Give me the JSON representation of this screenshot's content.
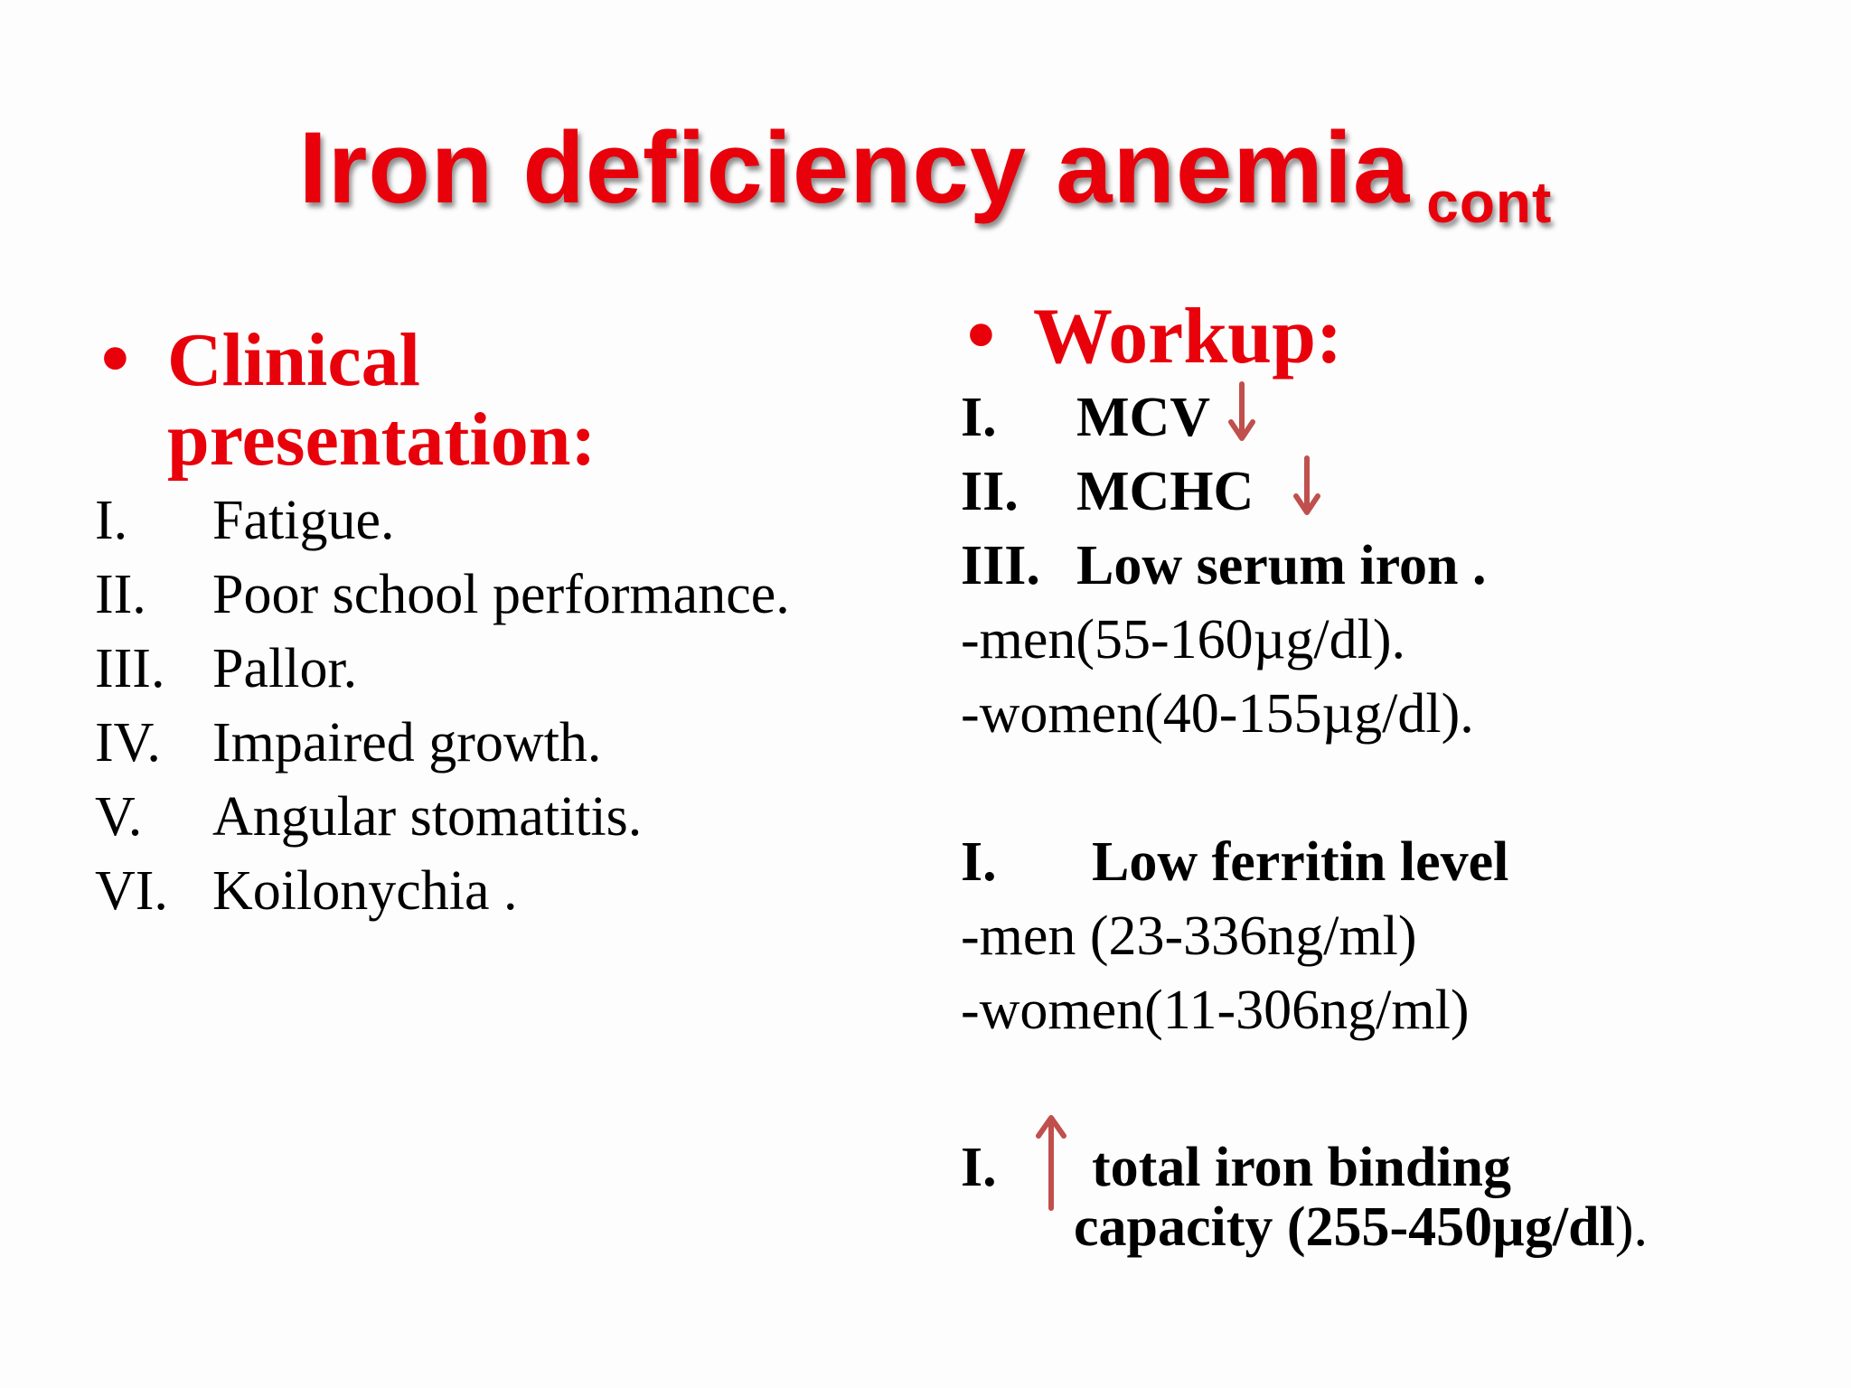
{
  "title": {
    "main": "Iron deficiency anemia",
    "sub": "cont"
  },
  "left": {
    "heading_line1": "Clinical",
    "heading_line2": "presentation:",
    "items": [
      {
        "num": "I.",
        "text": "Fatigue."
      },
      {
        "num": "II.",
        "text": "Poor school performance."
      },
      {
        "num": "III.",
        "text": "Pallor."
      },
      {
        "num": "IV.",
        "text": "Impaired growth."
      },
      {
        "num": "V.",
        "text": "Angular stomatitis."
      },
      {
        "num": "VI.",
        "text": "Koilonychia ."
      }
    ]
  },
  "right": {
    "heading": "Workup:",
    "items": [
      {
        "num": "I.",
        "text": "MCV",
        "arrow": "down-arrow-icon"
      },
      {
        "num": "II.",
        "text": "MCHC",
        "arrow": "down-arrow-icon"
      },
      {
        "num": "III.",
        "text": "Low serum iron ."
      }
    ],
    "serum_iron_ranges": [
      "-men(55-160µg/dl).",
      "-women(40-155µg/dl)."
    ],
    "ferritin": {
      "num": "I.",
      "text": "Low ferritin level"
    },
    "ferritin_ranges": [
      "-men (23-336ng/ml)",
      "-women(11-306ng/ml)"
    ],
    "tibc": {
      "num": "I.",
      "arrow": "up-arrow-icon",
      "line1": "total iron binding",
      "line2": "capacity (255-450µg/dl",
      "line2_end": ")."
    }
  },
  "colors": {
    "title": "#e8000b",
    "heading": "#e8000b",
    "arrow": "#c0504d",
    "text": "#000000"
  }
}
